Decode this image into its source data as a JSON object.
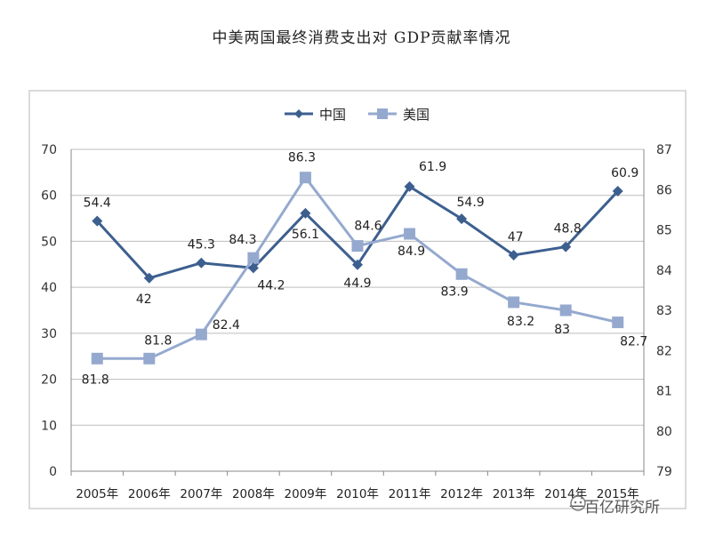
{
  "title": "中美两国最终消费支出对 GDP贡献率情况",
  "watermark": "一百亿研究所",
  "chart_data": {
    "type": "line",
    "title": "中美两国最终消费支出对 GDP贡献率情况",
    "categories": [
      "2005年",
      "2006年",
      "2007年",
      "2008年",
      "2009年",
      "2010年",
      "2011年",
      "2012年",
      "2013年",
      "2014年",
      "2015年"
    ],
    "series": [
      {
        "name": "中国",
        "axis": "left",
        "color": "#3d5f8f",
        "marker": "diamond",
        "values": [
          54.4,
          42,
          45.3,
          44.2,
          56.1,
          44.9,
          61.9,
          54.9,
          47,
          48.8,
          60.9
        ],
        "labels": [
          "54.4",
          "42",
          "45.3",
          "44.2",
          "56.1",
          "44.9",
          "61.9",
          "54.9",
          "47",
          "48.8",
          "60.9"
        ]
      },
      {
        "name": "美国",
        "axis": "right",
        "color": "#95a9cf",
        "marker": "square",
        "values": [
          81.8,
          81.8,
          82.4,
          84.3,
          86.3,
          84.6,
          84.9,
          83.9,
          83.2,
          83,
          82.7
        ],
        "labels": [
          "81.8",
          "81.8",
          "82.4",
          "84.3",
          "86.3",
          "84.6",
          "84.9",
          "83.9",
          "83.2",
          "83",
          "82.7"
        ]
      }
    ],
    "y_left": {
      "min": 0,
      "max": 70,
      "ticks": [
        0,
        10,
        20,
        30,
        40,
        50,
        60,
        70
      ]
    },
    "y_right": {
      "min": 79,
      "max": 87,
      "ticks": [
        79,
        80,
        81,
        82,
        83,
        84,
        85,
        86,
        87
      ]
    },
    "grid": true,
    "legend": "top-center"
  }
}
